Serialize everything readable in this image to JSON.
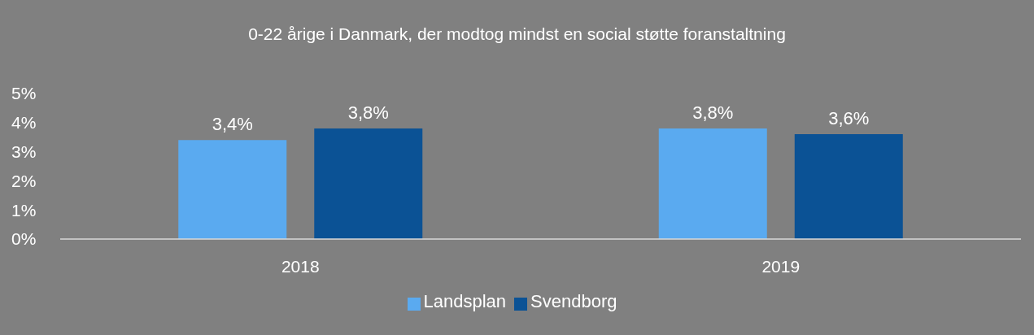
{
  "chart_data": {
    "type": "bar",
    "title": "0-22 årige i Danmark, der modtog mindst en social støtte foranstaltning",
    "categories": [
      "2018",
      "2019"
    ],
    "series": [
      {
        "name": "Landsplan",
        "color": "#5aaaf0",
        "values": [
          3.4,
          3.8
        ],
        "value_labels": [
          "3,4%",
          "3,8%"
        ]
      },
      {
        "name": "Svendborg",
        "color": "#0b5295",
        "values": [
          3.8,
          3.6
        ],
        "value_labels": [
          "3,8%",
          "3,6%"
        ]
      }
    ],
    "ylim": [
      0,
      5
    ],
    "yticks": [
      {
        "value": 0,
        "label": "0%"
      },
      {
        "value": 1,
        "label": "1%"
      },
      {
        "value": 2,
        "label": "2%"
      },
      {
        "value": 3,
        "label": "3%"
      },
      {
        "value": 4,
        "label": "4%"
      },
      {
        "value": 5,
        "label": "5%"
      }
    ],
    "grid": false,
    "legend": "bottom"
  }
}
